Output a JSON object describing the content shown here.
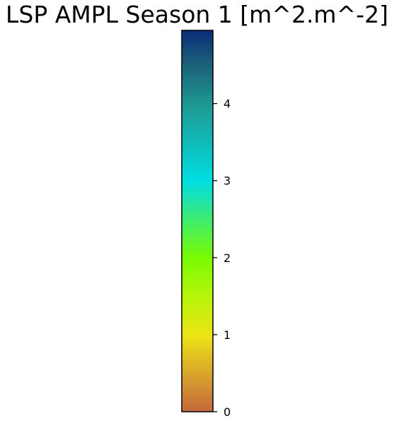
{
  "chart_data": {
    "type": "colorbar",
    "title": "LSP AMPL Season 1 [m^2.m^-2]",
    "orientation": "vertical",
    "range": [
      0,
      4.95
    ],
    "ticks": [
      0,
      1,
      2,
      3,
      4
    ],
    "tick_labels": [
      "0",
      "1",
      "2",
      "3",
      "4"
    ],
    "colormap_stops": [
      {
        "value": 0.0,
        "color": "#c5683c"
      },
      {
        "value": 0.5,
        "color": "#d9a62c"
      },
      {
        "value": 1.0,
        "color": "#ede515"
      },
      {
        "value": 1.5,
        "color": "#b5f50a"
      },
      {
        "value": 2.0,
        "color": "#78fc02"
      },
      {
        "value": 2.5,
        "color": "#3deb70"
      },
      {
        "value": 2.8,
        "color": "#18e2b8"
      },
      {
        "value": 3.0,
        "color": "#00dfe2"
      },
      {
        "value": 3.5,
        "color": "#11b9b8"
      },
      {
        "value": 4.0,
        "color": "#1f9793"
      },
      {
        "value": 4.5,
        "color": "#1a6178"
      },
      {
        "value": 4.95,
        "color": "#0d2d7c"
      }
    ]
  }
}
